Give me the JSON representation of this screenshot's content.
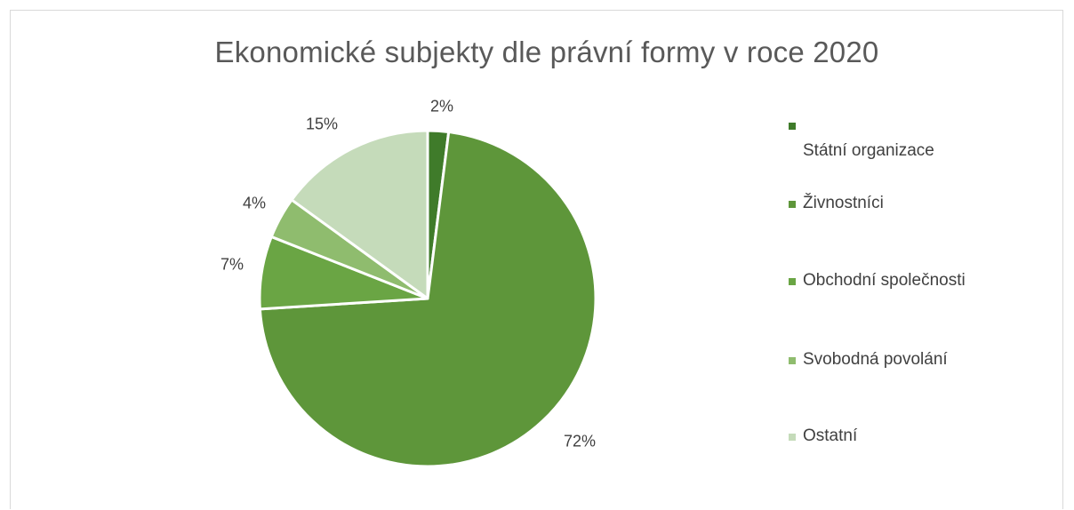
{
  "chart_data": {
    "type": "pie",
    "title": "Ekonomické subjekty dle právní formy v roce 2020",
    "categories": [
      "Státní organizace",
      "Živnostníci",
      "Obchodní společnosti",
      "Svobodná povolání",
      "Ostatní"
    ],
    "values": [
      2,
      72,
      7,
      4,
      15
    ],
    "data_labels": [
      "2%",
      "72%",
      "7%",
      "4%",
      "15%"
    ],
    "colors": [
      "#3f7b2a",
      "#5e963a",
      "#6aa544",
      "#8fbc6e",
      "#c5dbba"
    ],
    "legend_placement": "right"
  }
}
